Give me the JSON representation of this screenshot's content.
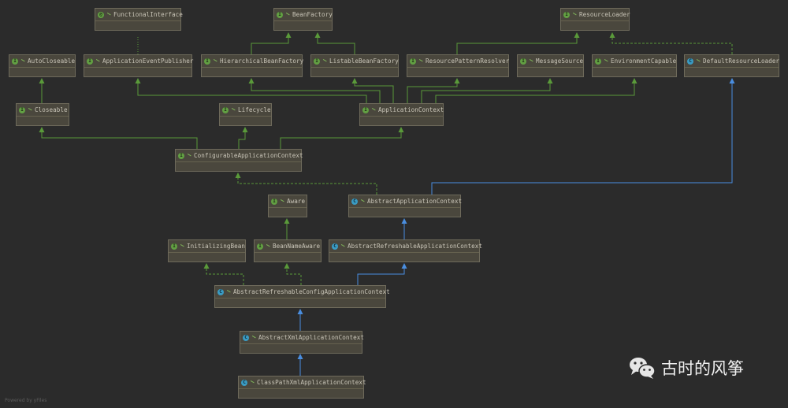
{
  "colors": {
    "background": "#2b2b2b",
    "node_fill": "#4a473d",
    "interface_edge": "#5a9a3a",
    "class_edge": "#4a8ee0",
    "interface_icon": "#62a043",
    "class_icon": "#3a9cc4"
  },
  "nodes": [
    {
      "name": "FunctionalInterface",
      "kind": "annotation"
    },
    {
      "name": "BeanFactory",
      "kind": "interface"
    },
    {
      "name": "ResourceLoader",
      "kind": "interface"
    },
    {
      "name": "AutoCloseable",
      "kind": "interface"
    },
    {
      "name": "ApplicationEventPublisher",
      "kind": "interface"
    },
    {
      "name": "HierarchicalBeanFactory",
      "kind": "interface"
    },
    {
      "name": "ListableBeanFactory",
      "kind": "interface"
    },
    {
      "name": "ResourcePatternResolver",
      "kind": "interface"
    },
    {
      "name": "MessageSource",
      "kind": "interface"
    },
    {
      "name": "EnvironmentCapable",
      "kind": "interface"
    },
    {
      "name": "DefaultResourceLoader",
      "kind": "class"
    },
    {
      "name": "Closeable",
      "kind": "interface"
    },
    {
      "name": "Lifecycle",
      "kind": "interface"
    },
    {
      "name": "ApplicationContext",
      "kind": "interface"
    },
    {
      "name": "ConfigurableApplicationContext",
      "kind": "interface"
    },
    {
      "name": "Aware",
      "kind": "interface"
    },
    {
      "name": "AbstractApplicationContext",
      "kind": "abstract-class"
    },
    {
      "name": "InitializingBean",
      "kind": "interface"
    },
    {
      "name": "BeanNameAware",
      "kind": "interface"
    },
    {
      "name": "AbstractRefreshableApplicationContext",
      "kind": "abstract-class"
    },
    {
      "name": "AbstractRefreshableConfigApplicationContext",
      "kind": "abstract-class"
    },
    {
      "name": "AbstractXmlApplicationContext",
      "kind": "abstract-class"
    },
    {
      "name": "ClassPathXmlApplicationContext",
      "kind": "class"
    }
  ],
  "edges": [
    {
      "from": "HierarchicalBeanFactory",
      "to": "BeanFactory",
      "type": "extends"
    },
    {
      "from": "ListableBeanFactory",
      "to": "BeanFactory",
      "type": "extends"
    },
    {
      "from": "ResourcePatternResolver",
      "to": "ResourceLoader",
      "type": "extends"
    },
    {
      "from": "DefaultResourceLoader",
      "to": "ResourceLoader",
      "type": "implements"
    },
    {
      "from": "ApplicationEventPublisher",
      "to": "FunctionalInterface",
      "type": "annotated"
    },
    {
      "from": "Closeable",
      "to": "AutoCloseable",
      "type": "extends"
    },
    {
      "from": "ApplicationContext",
      "to": "ApplicationEventPublisher",
      "type": "extends"
    },
    {
      "from": "ApplicationContext",
      "to": "HierarchicalBeanFactory",
      "type": "extends"
    },
    {
      "from": "ApplicationContext",
      "to": "ListableBeanFactory",
      "type": "extends"
    },
    {
      "from": "ApplicationContext",
      "to": "ResourcePatternResolver",
      "type": "extends"
    },
    {
      "from": "ApplicationContext",
      "to": "MessageSource",
      "type": "extends"
    },
    {
      "from": "ApplicationContext",
      "to": "EnvironmentCapable",
      "type": "extends"
    },
    {
      "from": "ConfigurableApplicationContext",
      "to": "Closeable",
      "type": "extends"
    },
    {
      "from": "ConfigurableApplicationContext",
      "to": "Lifecycle",
      "type": "extends"
    },
    {
      "from": "ConfigurableApplicationContext",
      "to": "ApplicationContext",
      "type": "extends"
    },
    {
      "from": "AbstractApplicationContext",
      "to": "ConfigurableApplicationContext",
      "type": "implements"
    },
    {
      "from": "AbstractApplicationContext",
      "to": "DefaultResourceLoader",
      "type": "class-extends"
    },
    {
      "from": "BeanNameAware",
      "to": "Aware",
      "type": "extends"
    },
    {
      "from": "AbstractRefreshableApplicationContext",
      "to": "AbstractApplicationContext",
      "type": "class-extends"
    },
    {
      "from": "AbstractRefreshableConfigApplicationContext",
      "to": "InitializingBean",
      "type": "implements"
    },
    {
      "from": "AbstractRefreshableConfigApplicationContext",
      "to": "BeanNameAware",
      "type": "implements"
    },
    {
      "from": "AbstractRefreshableConfigApplicationContext",
      "to": "AbstractRefreshableApplicationContext",
      "type": "class-extends"
    },
    {
      "from": "AbstractXmlApplicationContext",
      "to": "AbstractRefreshableConfigApplicationContext",
      "type": "class-extends"
    },
    {
      "from": "ClassPathXmlApplicationContext",
      "to": "AbstractXmlApplicationContext",
      "type": "class-extends"
    }
  ],
  "footer": "Powered by yFiles",
  "watermark": {
    "icon": "wechat-icon",
    "text": "古时的风筝"
  }
}
